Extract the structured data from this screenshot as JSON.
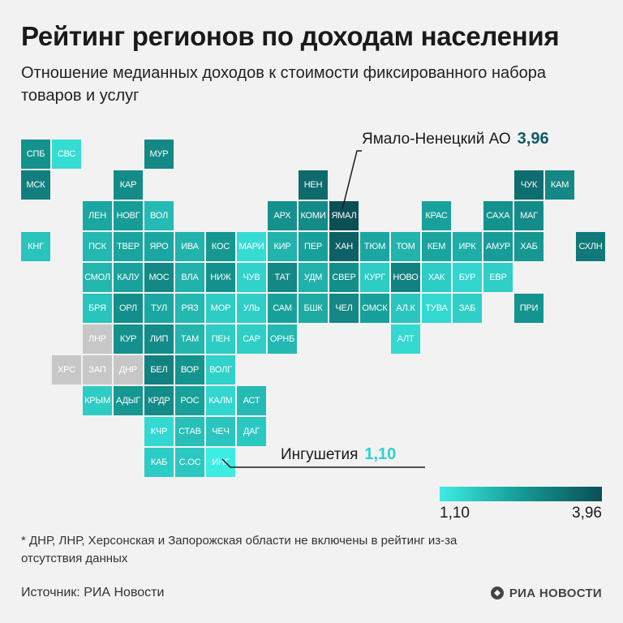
{
  "title": "Рейтинг регионов по доходам населения",
  "subtitle": "Отношение медианных доходов к стоимости фиксированного набора товаров и услуг",
  "footnote": "* ДНР, ЛНР, Херсонская и Запорожская области не включены в рейтинг из-за отсутствия данных",
  "source": "Источник: РИА Новости",
  "logo": "РИА НОВОСТИ",
  "colors": {
    "low": "#3dede4",
    "mid": "#159a94",
    "high": "#0b4f56",
    "nodata": "#c7c7c7",
    "background": "#f2f2f2"
  },
  "chart_data": {
    "type": "heatmap",
    "title": "Рейтинг регионов по доходам населения",
    "subtitle": "Отношение медианных доходов к стоимости фиксированного набора товаров и услуг",
    "scale": {
      "min": 1.1,
      "max": 3.96,
      "min_label": "1,10",
      "max_label": "3,96"
    },
    "highlights": [
      {
        "region": "Ямало-Ненецкий АО",
        "tile": "ЯМАЛ",
        "value_label": "3,96",
        "value": 3.96
      },
      {
        "region": "Ингушетия",
        "tile": "ИНГ",
        "value_label": "1,10",
        "value": 1.1
      }
    ],
    "grid_note": "tiles as [label, column, row, level]; level is relative color intensity 0..1, null = no data",
    "tiles": [
      [
        "СПБ",
        0,
        0,
        0.55
      ],
      [
        "СВС",
        1,
        0,
        0.1
      ],
      [
        "МУР",
        4,
        0,
        0.62
      ],
      [
        "МСК",
        0,
        1,
        0.68
      ],
      [
        "КАР",
        3,
        1,
        0.6
      ],
      [
        "НЕН",
        9,
        1,
        0.82
      ],
      [
        "ЧУК",
        16,
        1,
        0.8
      ],
      [
        "КАМ",
        17,
        1,
        0.62
      ],
      [
        "ЛЕН",
        2,
        2,
        0.42
      ],
      [
        "НОВГ",
        3,
        2,
        0.48
      ],
      [
        "ВОЛ",
        4,
        2,
        0.3
      ],
      [
        "АРХ",
        8,
        2,
        0.56
      ],
      [
        "КОМИ",
        9,
        2,
        0.6
      ],
      [
        "ЯМАЛ",
        10,
        2,
        1.0
      ],
      [
        "КРАС",
        13,
        2,
        0.46
      ],
      [
        "САХА",
        15,
        2,
        0.55
      ],
      [
        "МАГ",
        16,
        2,
        0.6
      ],
      [
        "КНГ",
        0,
        3,
        0.25
      ],
      [
        "ПСК",
        2,
        3,
        0.32
      ],
      [
        "ТВЕР",
        3,
        3,
        0.44
      ],
      [
        "ЯРО",
        4,
        3,
        0.42
      ],
      [
        "ИВА",
        5,
        3,
        0.35
      ],
      [
        "КОС",
        6,
        3,
        0.52
      ],
      [
        "МАРИ",
        7,
        3,
        0.1
      ],
      [
        "КИР",
        8,
        3,
        0.35
      ],
      [
        "ПЕР",
        9,
        3,
        0.46
      ],
      [
        "ХАН",
        10,
        3,
        0.88
      ],
      [
        "ТЮМ",
        11,
        3,
        0.42
      ],
      [
        "ТОМ",
        12,
        3,
        0.35
      ],
      [
        "КЕМ",
        13,
        3,
        0.44
      ],
      [
        "ИРК",
        14,
        3,
        0.38
      ],
      [
        "АМУР",
        15,
        3,
        0.48
      ],
      [
        "ХАБ",
        16,
        3,
        0.52
      ],
      [
        "СХЛН",
        18,
        3,
        0.72
      ],
      [
        "СМОЛ",
        2,
        4,
        0.33
      ],
      [
        "КАЛУ",
        3,
        4,
        0.45
      ],
      [
        "МОС",
        4,
        4,
        0.62
      ],
      [
        "ВЛА",
        5,
        4,
        0.36
      ],
      [
        "НИЖ",
        6,
        4,
        0.56
      ],
      [
        "ЧУВ",
        7,
        4,
        0.16
      ],
      [
        "ТАТ",
        8,
        4,
        0.62
      ],
      [
        "УДМ",
        9,
        4,
        0.36
      ],
      [
        "СВЕР",
        10,
        4,
        0.58
      ],
      [
        "КУРГ",
        11,
        4,
        0.2
      ],
      [
        "НОВО",
        12,
        4,
        0.66
      ],
      [
        "ХАК",
        13,
        4,
        0.2
      ],
      [
        "БУР",
        14,
        4,
        0.14
      ],
      [
        "ЕВР",
        15,
        4,
        0.18
      ],
      [
        "БРЯ",
        2,
        5,
        0.25
      ],
      [
        "ОРЛ",
        3,
        5,
        0.58
      ],
      [
        "ТУЛ",
        4,
        5,
        0.42
      ],
      [
        "РЯЗ",
        5,
        5,
        0.32
      ],
      [
        "МОР",
        6,
        5,
        0.2
      ],
      [
        "УЛЬ",
        7,
        5,
        0.18
      ],
      [
        "САМ",
        8,
        5,
        0.46
      ],
      [
        "БШК",
        9,
        5,
        0.4
      ],
      [
        "ЧЕЛ",
        10,
        5,
        0.62
      ],
      [
        "ОМСК",
        11,
        5,
        0.46
      ],
      [
        "АЛ.К",
        12,
        5,
        0.24
      ],
      [
        "ТУВА",
        13,
        5,
        0.12
      ],
      [
        "ЗАБ",
        14,
        5,
        0.18
      ],
      [
        "ПРИ",
        16,
        5,
        0.54
      ],
      [
        "ЛНР",
        2,
        6,
        null
      ],
      [
        "КУР",
        3,
        6,
        0.56
      ],
      [
        "ЛИП",
        4,
        6,
        0.6
      ],
      [
        "ТАМ",
        5,
        6,
        0.34
      ],
      [
        "ПЕН",
        6,
        6,
        0.2
      ],
      [
        "САР",
        7,
        6,
        0.18
      ],
      [
        "ОРНБ",
        8,
        6,
        0.32
      ],
      [
        "АЛТ",
        12,
        6,
        0.12
      ],
      [
        "ХРС",
        1,
        7,
        null
      ],
      [
        "ЗАП",
        2,
        7,
        null
      ],
      [
        "ДНР",
        3,
        7,
        null
      ],
      [
        "БЕЛ",
        4,
        7,
        0.66
      ],
      [
        "ВОР",
        5,
        7,
        0.54
      ],
      [
        "ВОЛГ",
        6,
        7,
        0.16
      ],
      [
        "КРЫМ",
        2,
        8,
        0.2
      ],
      [
        "АДЫГ",
        3,
        8,
        0.52
      ],
      [
        "КРДР",
        4,
        8,
        0.6
      ],
      [
        "РОС",
        5,
        8,
        0.46
      ],
      [
        "КАЛМ",
        6,
        8,
        0.14
      ],
      [
        "АСТ",
        7,
        8,
        0.3
      ],
      [
        "КЧР",
        4,
        9,
        0.12
      ],
      [
        "СТАВ",
        5,
        9,
        0.28
      ],
      [
        "ЧЕЧ",
        6,
        9,
        0.24
      ],
      [
        "ДАГ",
        7,
        9,
        0.22
      ],
      [
        "КАБ",
        4,
        10,
        0.2
      ],
      [
        "С.ОС",
        5,
        10,
        0.22
      ],
      [
        "ИНГ",
        6,
        10,
        0.0
      ]
    ]
  }
}
